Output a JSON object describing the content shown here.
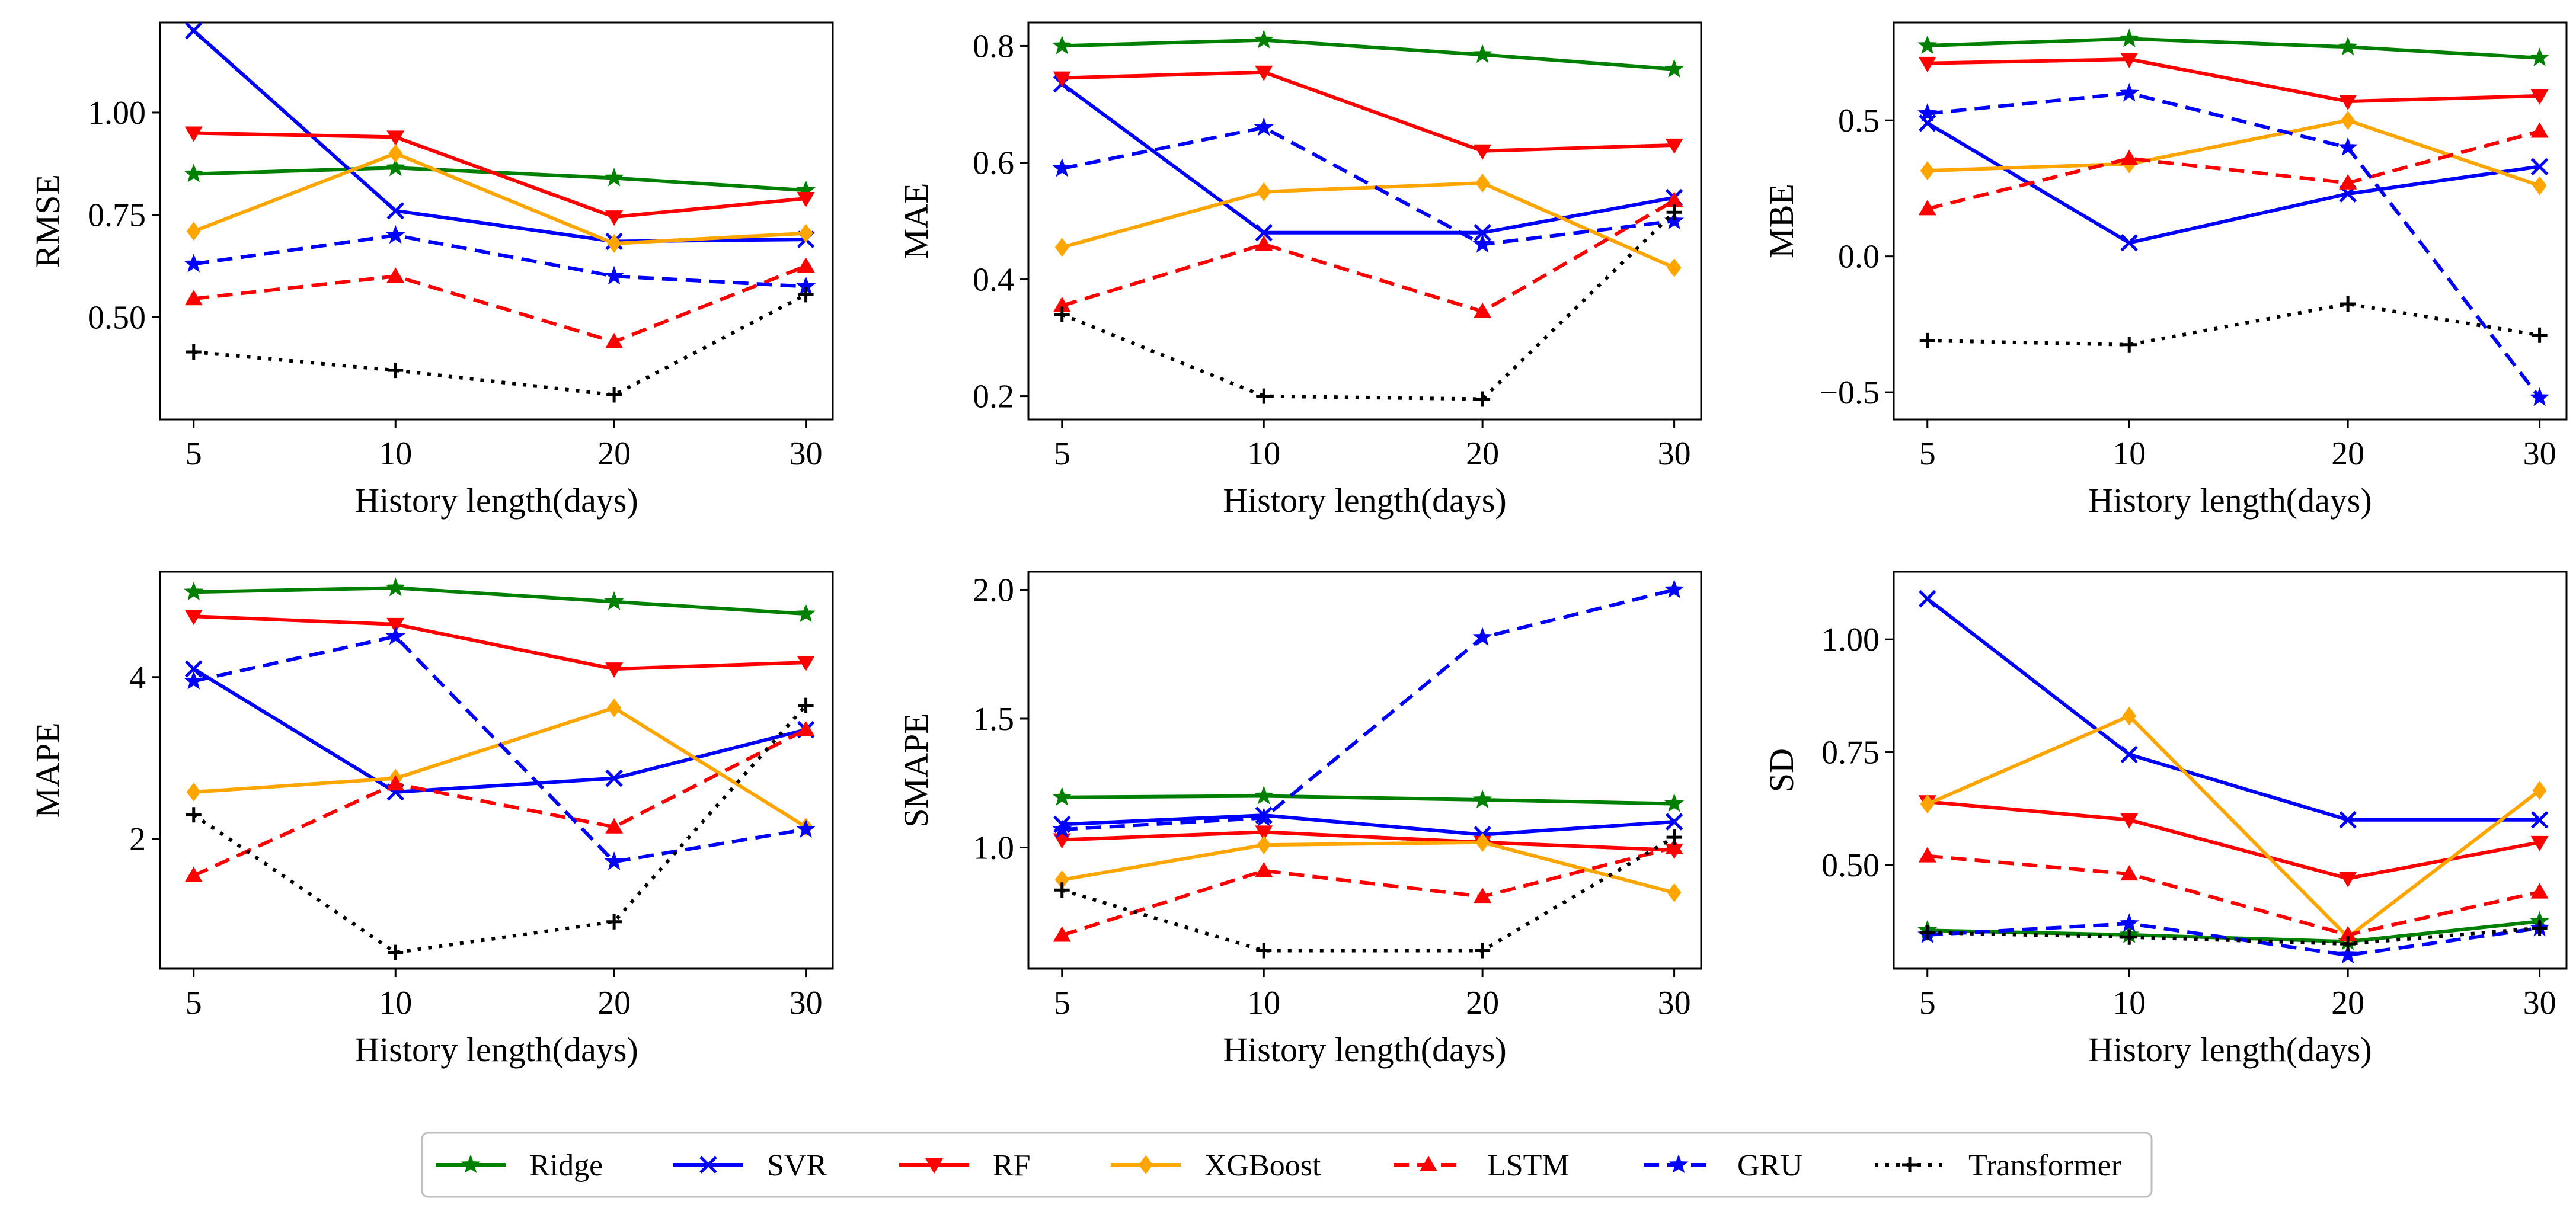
{
  "figure": {
    "legend_position": "bottom-center",
    "series_style": [
      {
        "name": "Ridge",
        "color": "#008000",
        "dash": "solid",
        "marker": "star"
      },
      {
        "name": "SVR",
        "color": "#0000ff",
        "dash": "solid",
        "marker": "x"
      },
      {
        "name": "RF",
        "color": "#ff0000",
        "dash": "solid",
        "marker": "tri-down"
      },
      {
        "name": "XGBoost",
        "color": "#ffa500",
        "dash": "solid",
        "marker": "diamond"
      },
      {
        "name": "LSTM",
        "color": "#ff0000",
        "dash": "dashed",
        "marker": "tri-up"
      },
      {
        "name": "GRU",
        "color": "#0000ff",
        "dash": "dashed",
        "marker": "star"
      },
      {
        "name": "Transformer",
        "color": "#000000",
        "dash": "dotted",
        "marker": "plus"
      }
    ]
  },
  "chart_data": [
    {
      "type": "line",
      "title": "",
      "xlabel": "History length(days)",
      "ylabel": "RMSE",
      "categories": [
        "5",
        "10",
        "20",
        "30"
      ],
      "ylim": [
        0.25,
        1.22
      ],
      "yticks": [
        {
          "v": 0.5,
          "label": "0.50"
        },
        {
          "v": 0.75,
          "label": "0.75"
        },
        {
          "v": 1.0,
          "label": "1.00"
        }
      ],
      "series": [
        {
          "name": "Ridge",
          "values": [
            0.85,
            0.865,
            0.84,
            0.81
          ]
        },
        {
          "name": "SVR",
          "values": [
            1.2,
            0.76,
            0.685,
            0.69
          ]
        },
        {
          "name": "RF",
          "values": [
            0.95,
            0.94,
            0.745,
            0.79
          ]
        },
        {
          "name": "XGBoost",
          "values": [
            0.71,
            0.9,
            0.68,
            0.705
          ]
        },
        {
          "name": "LSTM",
          "values": [
            0.545,
            0.6,
            0.44,
            0.625
          ]
        },
        {
          "name": "GRU",
          "values": [
            0.63,
            0.7,
            0.6,
            0.575
          ]
        },
        {
          "name": "Transformer",
          "values": [
            0.415,
            0.37,
            0.31,
            0.555
          ]
        }
      ]
    },
    {
      "type": "line",
      "title": "",
      "xlabel": "History length(days)",
      "ylabel": "MAE",
      "categories": [
        "5",
        "10",
        "20",
        "30"
      ],
      "ylim": [
        0.16,
        0.84
      ],
      "yticks": [
        {
          "v": 0.2,
          "label": "0.2"
        },
        {
          "v": 0.4,
          "label": "0.4"
        },
        {
          "v": 0.6,
          "label": "0.6"
        },
        {
          "v": 0.8,
          "label": "0.8"
        }
      ],
      "series": [
        {
          "name": "Ridge",
          "values": [
            0.8,
            0.81,
            0.785,
            0.76
          ]
        },
        {
          "name": "SVR",
          "values": [
            0.735,
            0.48,
            0.48,
            0.54
          ]
        },
        {
          "name": "RF",
          "values": [
            0.745,
            0.755,
            0.62,
            0.63
          ]
        },
        {
          "name": "XGBoost",
          "values": [
            0.455,
            0.55,
            0.565,
            0.42
          ]
        },
        {
          "name": "LSTM",
          "values": [
            0.355,
            0.46,
            0.345,
            0.535
          ]
        },
        {
          "name": "GRU",
          "values": [
            0.59,
            0.66,
            0.46,
            0.5
          ]
        },
        {
          "name": "Transformer",
          "values": [
            0.34,
            0.2,
            0.195,
            0.515
          ]
        }
      ]
    },
    {
      "type": "line",
      "title": "",
      "xlabel": "History length(days)",
      "ylabel": "MBE",
      "categories": [
        "5",
        "10",
        "20",
        "30"
      ],
      "ylim": [
        -0.6,
        0.86
      ],
      "yticks": [
        {
          "v": -0.5,
          "label": "−0.5"
        },
        {
          "v": 0.0,
          "label": "0.0"
        },
        {
          "v": 0.5,
          "label": "0.5"
        }
      ],
      "series": [
        {
          "name": "Ridge",
          "values": [
            0.775,
            0.8,
            0.77,
            0.73
          ]
        },
        {
          "name": "SVR",
          "values": [
            0.49,
            0.05,
            0.23,
            0.33
          ]
        },
        {
          "name": "RF",
          "values": [
            0.71,
            0.725,
            0.57,
            0.59
          ]
        },
        {
          "name": "XGBoost",
          "values": [
            0.315,
            0.34,
            0.5,
            0.26
          ]
        },
        {
          "name": "LSTM",
          "values": [
            0.175,
            0.36,
            0.27,
            0.46
          ]
        },
        {
          "name": "GRU",
          "values": [
            0.525,
            0.6,
            0.4,
            -0.52
          ]
        },
        {
          "name": "Transformer",
          "values": [
            -0.31,
            -0.325,
            -0.175,
            -0.29
          ]
        }
      ]
    },
    {
      "type": "line",
      "title": "",
      "xlabel": "History length(days)",
      "ylabel": "MAPE",
      "categories": [
        "5",
        "10",
        "20",
        "30"
      ],
      "ylim": [
        0.4,
        5.3
      ],
      "yticks": [
        {
          "v": 2,
          "label": "2"
        },
        {
          "v": 4,
          "label": "4"
        }
      ],
      "series": [
        {
          "name": "Ridge",
          "values": [
            5.05,
            5.1,
            4.93,
            4.78
          ]
        },
        {
          "name": "SVR",
          "values": [
            4.1,
            2.58,
            2.75,
            3.35
          ]
        },
        {
          "name": "RF",
          "values": [
            4.75,
            4.65,
            4.1,
            4.18
          ]
        },
        {
          "name": "XGBoost",
          "values": [
            2.58,
            2.75,
            3.62,
            2.15
          ]
        },
        {
          "name": "LSTM",
          "values": [
            1.55,
            2.68,
            2.15,
            3.35
          ]
        },
        {
          "name": "GRU",
          "values": [
            3.95,
            4.5,
            1.72,
            2.12
          ]
        },
        {
          "name": "Transformer",
          "values": [
            2.3,
            0.6,
            0.98,
            3.65
          ]
        }
      ]
    },
    {
      "type": "line",
      "title": "",
      "xlabel": "History length(days)",
      "ylabel": "SMAPE",
      "categories": [
        "5",
        "10",
        "20",
        "30"
      ],
      "ylim": [
        0.53,
        2.07
      ],
      "yticks": [
        {
          "v": 1.0,
          "label": "1.0"
        },
        {
          "v": 1.5,
          "label": "1.5"
        },
        {
          "v": 2.0,
          "label": "2.0"
        }
      ],
      "series": [
        {
          "name": "Ridge",
          "values": [
            1.195,
            1.2,
            1.185,
            1.17
          ]
        },
        {
          "name": "SVR",
          "values": [
            1.09,
            1.125,
            1.05,
            1.1
          ]
        },
        {
          "name": "RF",
          "values": [
            1.03,
            1.06,
            1.02,
            0.99
          ]
        },
        {
          "name": "XGBoost",
          "values": [
            0.875,
            1.01,
            1.02,
            0.825
          ]
        },
        {
          "name": "LSTM",
          "values": [
            0.66,
            0.91,
            0.81,
            1.0
          ]
        },
        {
          "name": "GRU",
          "values": [
            1.07,
            1.115,
            1.815,
            2.0
          ]
        },
        {
          "name": "Transformer",
          "values": [
            0.835,
            0.6,
            0.6,
            1.04
          ]
        }
      ]
    },
    {
      "type": "line",
      "title": "",
      "xlabel": "History length(days)",
      "ylabel": "SD",
      "categories": [
        "5",
        "10",
        "20",
        "30"
      ],
      "ylim": [
        0.27,
        1.15
      ],
      "yticks": [
        {
          "v": 0.5,
          "label": "0.50"
        },
        {
          "v": 0.75,
          "label": "0.75"
        },
        {
          "v": 1.0,
          "label": "1.00"
        }
      ],
      "series": [
        {
          "name": "Ridge",
          "values": [
            0.355,
            0.345,
            0.33,
            0.375
          ]
        },
        {
          "name": "SVR",
          "values": [
            1.09,
            0.745,
            0.6,
            0.6
          ]
        },
        {
          "name": "RF",
          "values": [
            0.64,
            0.6,
            0.47,
            0.55
          ]
        },
        {
          "name": "XGBoost",
          "values": [
            0.635,
            0.83,
            0.34,
            0.665
          ]
        },
        {
          "name": "LSTM",
          "values": [
            0.52,
            0.48,
            0.345,
            0.44
          ]
        },
        {
          "name": "GRU",
          "values": [
            0.345,
            0.37,
            0.3,
            0.36
          ]
        },
        {
          "name": "Transformer",
          "values": [
            0.35,
            0.34,
            0.325,
            0.36
          ]
        }
      ]
    }
  ]
}
